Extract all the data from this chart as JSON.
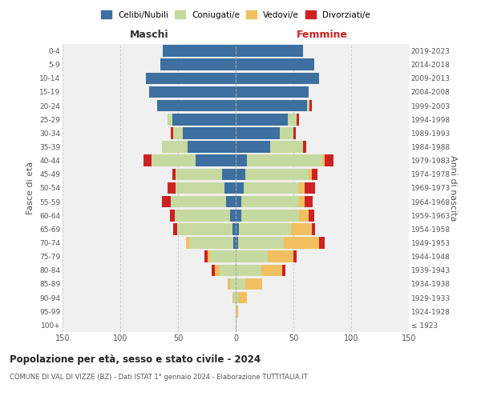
{
  "age_groups": [
    "100+",
    "95-99",
    "90-94",
    "85-89",
    "80-84",
    "75-79",
    "70-74",
    "65-69",
    "60-64",
    "55-59",
    "50-54",
    "45-49",
    "40-44",
    "35-39",
    "30-34",
    "25-29",
    "20-24",
    "15-19",
    "10-14",
    "5-9",
    "0-4"
  ],
  "birth_years": [
    "≤ 1923",
    "1924-1928",
    "1929-1933",
    "1934-1938",
    "1939-1943",
    "1944-1948",
    "1949-1953",
    "1954-1958",
    "1959-1963",
    "1964-1968",
    "1969-1973",
    "1974-1978",
    "1979-1983",
    "1984-1988",
    "1989-1993",
    "1994-1998",
    "1999-2003",
    "2004-2008",
    "2009-2013",
    "2014-2018",
    "2019-2023"
  ],
  "male": {
    "celibe": [
      0,
      0,
      0,
      0,
      0,
      0,
      2,
      3,
      5,
      8,
      10,
      12,
      35,
      42,
      46,
      55,
      68,
      75,
      78,
      65,
      63
    ],
    "coniugato": [
      0,
      0,
      2,
      5,
      14,
      22,
      38,
      48,
      48,
      48,
      42,
      40,
      38,
      22,
      8,
      4,
      0,
      0,
      0,
      0,
      0
    ],
    "vedovo": [
      0,
      0,
      1,
      2,
      4,
      2,
      3,
      0,
      0,
      0,
      0,
      0,
      0,
      0,
      0,
      0,
      0,
      0,
      0,
      0,
      0
    ],
    "divorziato": [
      0,
      0,
      0,
      0,
      3,
      3,
      0,
      3,
      4,
      8,
      7,
      3,
      7,
      0,
      2,
      0,
      0,
      0,
      0,
      0,
      0
    ]
  },
  "female": {
    "nubile": [
      0,
      0,
      0,
      0,
      0,
      0,
      2,
      3,
      5,
      5,
      7,
      8,
      10,
      30,
      38,
      45,
      62,
      63,
      72,
      68,
      58
    ],
    "coniugata": [
      0,
      0,
      2,
      8,
      22,
      28,
      40,
      45,
      50,
      50,
      48,
      55,
      65,
      28,
      12,
      8,
      2,
      0,
      0,
      0,
      0
    ],
    "vedova": [
      1,
      2,
      8,
      15,
      18,
      22,
      30,
      18,
      8,
      5,
      5,
      3,
      2,
      0,
      0,
      0,
      0,
      0,
      0,
      0,
      0
    ],
    "divorziata": [
      0,
      0,
      0,
      0,
      3,
      3,
      5,
      3,
      5,
      7,
      9,
      5,
      8,
      3,
      2,
      2,
      2,
      0,
      0,
      0,
      0
    ]
  },
  "colors": {
    "celibe": "#3d6fa0",
    "coniugato": "#c5d9a0",
    "vedovo": "#f0c060",
    "divorziato": "#cc2222"
  },
  "title": "Popolazione per età, sesso e stato civile - 2024",
  "subtitle": "COMUNE DI VAL DI VIZZE (BZ) - Dati ISTAT 1° gennaio 2024 - Elaborazione TUTTITALIA.IT",
  "ylabel_left": "Fasce di età",
  "ylabel_right": "Anni di nascita",
  "xlabel_left": "Maschi",
  "xlabel_right": "Femmine",
  "xlim": 150,
  "bg_color": "#f0f0f0",
  "legend_labels": [
    "Celibi/Nubili",
    "Coniugati/e",
    "Vedovi/e",
    "Divorziati/e"
  ]
}
